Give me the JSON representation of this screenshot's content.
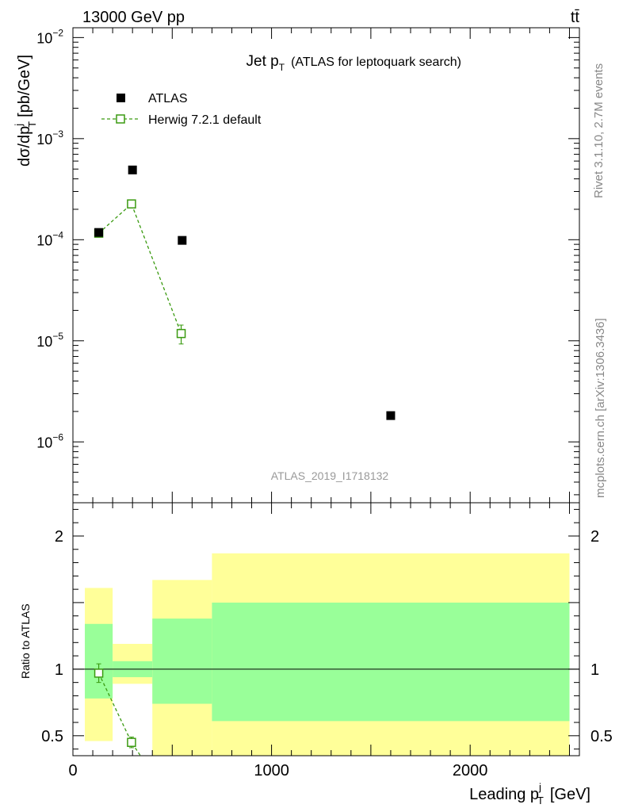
{
  "header": {
    "energy_label": "13000 GeV pp",
    "process_label": "tt̄"
  },
  "side_text": {
    "rivet": "Rivet 3.1.10,  2.7M events",
    "mcplots": "mcplots.cern.ch [arXiv:1306.3436]"
  },
  "watermark": "ATLAS_2019_I1718132",
  "colors": {
    "data": "#000000",
    "mc": "#3a9a10",
    "band_inner": "#99ff99",
    "band_outer": "#ffff99"
  },
  "chart_data": [
    {
      "type": "scatter",
      "title_main": "Jet p",
      "title_sub": "T",
      "title_rest": "(ATLAS for leptoquark search)",
      "ylabel": "dσ/dp",
      "ylabel_sup": "j",
      "ylabel_sub": "T",
      "ylabel_units": "[pb/GeV]",
      "yscale": "log",
      "ylim": [
        2.5e-07,
        0.0125
      ],
      "xlim": [
        0,
        2550
      ],
      "y_ticks": [
        {
          "base": "10",
          "exp": "−2",
          "value": 0.01
        },
        {
          "base": "10",
          "exp": "−3",
          "value": 0.001
        },
        {
          "base": "10",
          "exp": "−4",
          "value": 0.0001
        },
        {
          "base": "10",
          "exp": "−5",
          "value": 1e-05
        },
        {
          "base": "10",
          "exp": "−6",
          "value": 1e-06
        }
      ],
      "legend_position": "top-left",
      "series": [
        {
          "name": "ATLAS",
          "style": "filled-square",
          "x": [
            130,
            300,
            550,
            1600
          ],
          "y": [
            0.000118,
            0.00049,
            9.85e-05,
            1.82e-06
          ]
        },
        {
          "name": "Herwig 7.2.1 default",
          "style": "open-square-dashed",
          "x": [
            130,
            295,
            545
          ],
          "y": [
            0.000116,
            0.000226,
            1.18e-05
          ],
          "yerr_low": [
            2e-06,
            6e-06,
            2.5e-06
          ],
          "yerr_high": [
            2e-06,
            6e-06,
            2.5e-06
          ]
        }
      ]
    },
    {
      "type": "ratio",
      "ylabel": "Ratio to ATLAS",
      "xlabel_main": "Leading p",
      "xlabel_sup": "j",
      "xlabel_sub": "T",
      "xlabel_units": "[GeV]",
      "xlim": [
        0,
        2550
      ],
      "ylim": [
        0.35,
        2.25
      ],
      "x_ticks": [
        "0",
        "1000",
        "2000"
      ],
      "x_tick_values": [
        0,
        1000,
        2000
      ],
      "y_ticks": [
        "0.5",
        "1",
        "2"
      ],
      "y_tick_values": [
        0.5,
        1,
        2
      ],
      "bands": [
        {
          "x_low": 60,
          "x_high": 200,
          "inner": [
            0.78,
            1.34
          ],
          "outer": [
            0.46,
            1.61
          ]
        },
        {
          "x_low": 200,
          "x_high": 400,
          "inner": [
            0.94,
            1.06
          ],
          "outer": [
            0.89,
            1.19
          ]
        },
        {
          "x_low": 400,
          "x_high": 700,
          "inner": [
            0.74,
            1.38
          ],
          "outer": [
            0.35,
            1.67
          ]
        },
        {
          "x_low": 700,
          "x_high": 2500,
          "inner": [
            0.61,
            1.5
          ],
          "outer": [
            0.35,
            1.87
          ]
        }
      ],
      "series": [
        {
          "name": "Herwig 7.2.1 default / ATLAS",
          "x": [
            130,
            295,
            340
          ],
          "y": [
            0.97,
            0.45,
            0.35
          ],
          "yerr_low": [
            0.07,
            0.04,
            0
          ],
          "yerr_high": [
            0.07,
            0.04,
            0
          ],
          "markers": [
            true,
            true,
            false
          ]
        }
      ]
    }
  ]
}
